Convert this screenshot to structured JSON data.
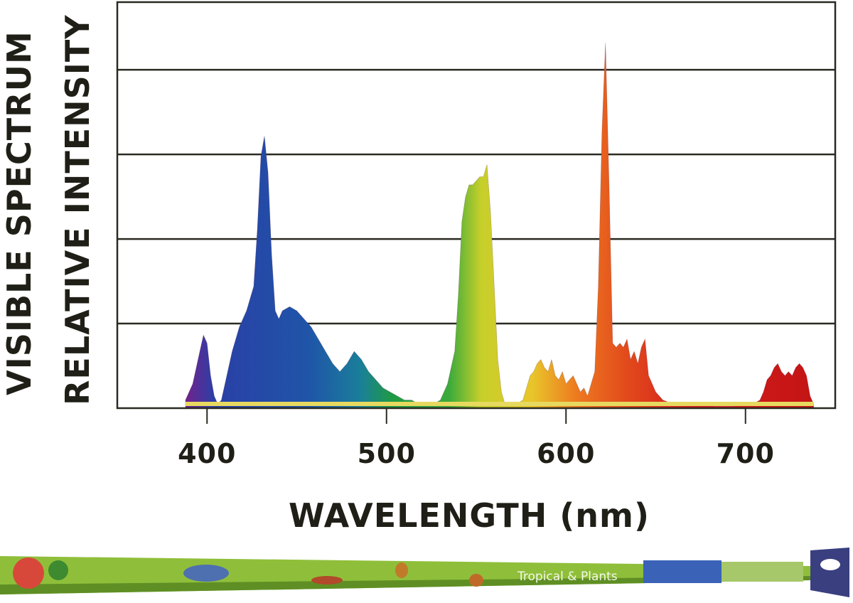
{
  "chart_data": {
    "type": "area",
    "ylabel_lines": [
      "VISIBLE SPECTRUM",
      "RELATIVE INTENSITY"
    ],
    "xlabel": "WAVELENGTH (nm)",
    "xticks": [
      400,
      500,
      600,
      700
    ],
    "xlim": [
      350,
      750
    ],
    "ylim": [
      0,
      100
    ],
    "grid": "horizontal",
    "series": [
      {
        "x": [
          388,
          392,
          396,
          398,
          400,
          402,
          404,
          406,
          408,
          410,
          414,
          418,
          422,
          426,
          428,
          430,
          432,
          434,
          436,
          438,
          440,
          442,
          446,
          450,
          454,
          458,
          462,
          466,
          470,
          474,
          478,
          482,
          486,
          490,
          494,
          498,
          502,
          506,
          510,
          514,
          518,
          522,
          526,
          530,
          534,
          538,
          540,
          542,
          544,
          546,
          548,
          550,
          552,
          554,
          556,
          558,
          560,
          562,
          564,
          566,
          568,
          572,
          576,
          578,
          580,
          582,
          584,
          586,
          588,
          590,
          592,
          594,
          596,
          598,
          600,
          602,
          604,
          606,
          608,
          610,
          612,
          614,
          616,
          618,
          620,
          622,
          624,
          626,
          628,
          630,
          632,
          634,
          636,
          638,
          640,
          642,
          644,
          646,
          648,
          650,
          654,
          660,
          666,
          670,
          676,
          682,
          686,
          690,
          694,
          698,
          700,
          704,
          708,
          710,
          712,
          714,
          716,
          718,
          720,
          722,
          724,
          726,
          728,
          730,
          732,
          734,
          736,
          738
        ],
        "y": [
          2,
          6,
          14,
          18,
          16,
          8,
          3,
          1,
          2,
          6,
          14,
          20,
          24,
          30,
          44,
          62,
          67,
          58,
          38,
          24,
          22,
          24,
          25,
          24,
          22,
          20,
          17,
          14,
          11,
          9,
          11,
          14,
          12,
          9,
          7,
          5,
          4,
          3,
          2,
          2,
          1,
          1,
          1,
          2,
          6,
          14,
          28,
          46,
          52,
          55,
          55,
          56,
          57,
          57,
          60,
          48,
          30,
          12,
          4,
          1,
          1,
          1,
          2,
          5,
          8,
          9,
          11,
          12,
          10,
          9,
          12,
          8,
          7,
          9,
          6,
          7,
          8,
          6,
          4,
          5,
          3,
          6,
          9,
          30,
          68,
          90,
          55,
          16,
          15,
          16,
          15,
          17,
          12,
          14,
          11,
          15,
          17,
          8,
          6,
          4,
          2,
          1,
          1,
          1,
          1,
          0.5,
          0.5,
          0.5,
          0.5,
          1,
          1,
          1,
          2,
          4,
          7,
          8,
          10,
          11,
          9,
          8,
          9,
          8,
          10,
          11,
          10,
          8,
          3,
          1
        ]
      }
    ]
  },
  "product": {
    "label": "Tropical & Plants",
    "colors": {
      "tube": "#8fbf3a",
      "tube_dark": "#5f8f24",
      "accent": "#3a63b8"
    }
  },
  "colors": {
    "axis": "#2a2a22",
    "grid": "#2a2a22",
    "text": "#1f1f17"
  }
}
